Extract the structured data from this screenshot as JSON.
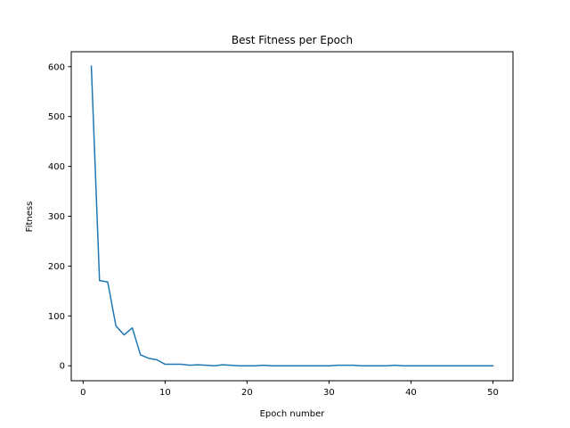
{
  "chart_data": {
    "type": "line",
    "title": "Best Fitness per Epoch",
    "xlabel": "Epoch number",
    "ylabel": "Fitness",
    "xlim": [
      -1.45,
      52.45
    ],
    "ylim": [
      -30,
      630
    ],
    "xticks": [
      0,
      10,
      20,
      30,
      40,
      50
    ],
    "yticks": [
      0,
      100,
      200,
      300,
      400,
      500,
      600
    ],
    "grid": false,
    "color": "#1f77b4",
    "x": [
      1,
      2,
      3,
      4,
      5,
      6,
      7,
      8,
      9,
      10,
      11,
      12,
      13,
      14,
      15,
      16,
      17,
      18,
      19,
      20,
      21,
      22,
      23,
      24,
      25,
      26,
      27,
      28,
      29,
      30,
      31,
      32,
      33,
      34,
      35,
      36,
      37,
      38,
      39,
      40,
      41,
      42,
      43,
      44,
      45,
      46,
      47,
      48,
      49,
      50
    ],
    "values": [
      601,
      171,
      168,
      80,
      62,
      76,
      22,
      15,
      12,
      3,
      3,
      3,
      1,
      2,
      1,
      0,
      2,
      1,
      0,
      0,
      0,
      1,
      0,
      0,
      0,
      0,
      0,
      0,
      0,
      0,
      1,
      1,
      1,
      0,
      0,
      0,
      0,
      1,
      0,
      0,
      0,
      0,
      0,
      0,
      0,
      0,
      0,
      0,
      0,
      0
    ]
  }
}
